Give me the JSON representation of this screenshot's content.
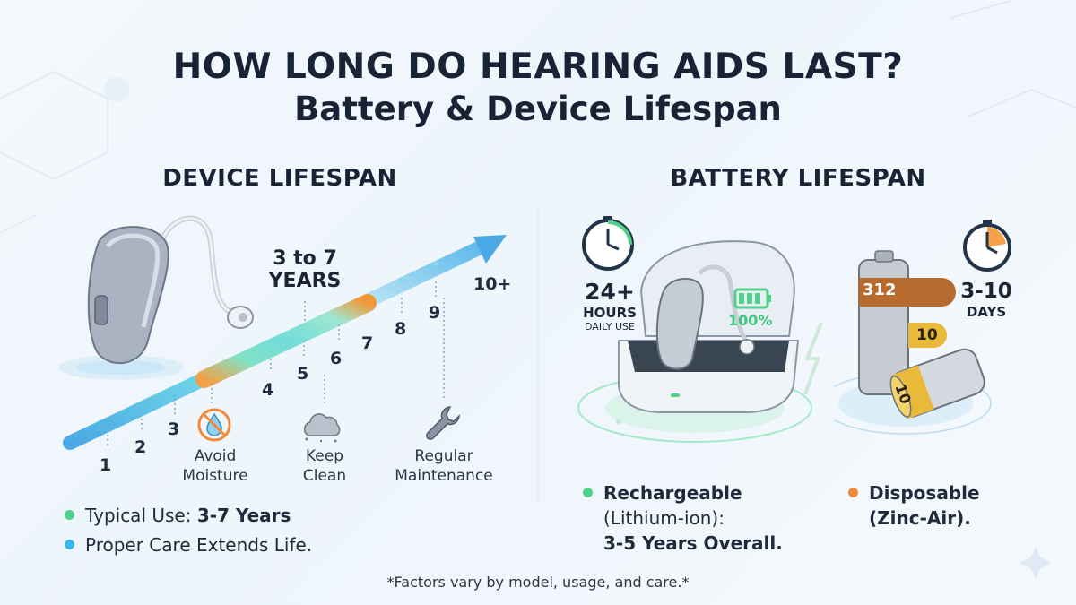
{
  "title": {
    "line1": "HOW LONG DO HEARING AIDS LAST?",
    "line2": "Battery & Device Lifespan"
  },
  "device": {
    "heading": "DEVICE LIFESPAN",
    "range_label_top": "3 to 7",
    "range_label_bottom": "YEARS",
    "scale": [
      "1",
      "2",
      "3",
      "4",
      "5",
      "6",
      "7",
      "8",
      "9",
      "10+"
    ],
    "tips": [
      {
        "icon": "no-water-drop-icon",
        "line1": "Avoid",
        "line2": "Moisture"
      },
      {
        "icon": "dust-cloud-icon",
        "line1": "Keep",
        "line2": "Clean"
      },
      {
        "icon": "wrench-icon",
        "line1": "Regular",
        "line2": "Maintenance"
      }
    ],
    "bullets": [
      {
        "prefix": "Typical Use: ",
        "bold": "3-7 Years",
        "color": "#4fd18b"
      },
      {
        "prefix": "Proper Care Extends Life.",
        "bold": "",
        "color": "#3ab7e8"
      }
    ]
  },
  "battery": {
    "heading": "BATTERY LIFESPAN",
    "rechargeable_stat": {
      "value": "24+",
      "unit": "HOURS",
      "sub": "DAILY USE"
    },
    "charge_level": "100%",
    "disposable_stat": {
      "value": "3-10",
      "unit": "DAYS"
    },
    "battery_labels": [
      "312",
      "10",
      "10"
    ],
    "rechargeable_text": {
      "line1": "Rechargeable",
      "line2": "(Lithium-ion):",
      "line3": "3-5 Years Overall.",
      "color": "#4fd18b"
    },
    "disposable_text": {
      "line1": "Disposable",
      "line2": "(Zinc-Air).",
      "color": "#f08a3a"
    }
  },
  "footnote": "*Factors vary by model, usage, and care.*",
  "colors": {
    "accent_blue": "#3ab7e8",
    "accent_green": "#4fd18b",
    "accent_orange": "#f5a14a",
    "dark": "#182336"
  }
}
